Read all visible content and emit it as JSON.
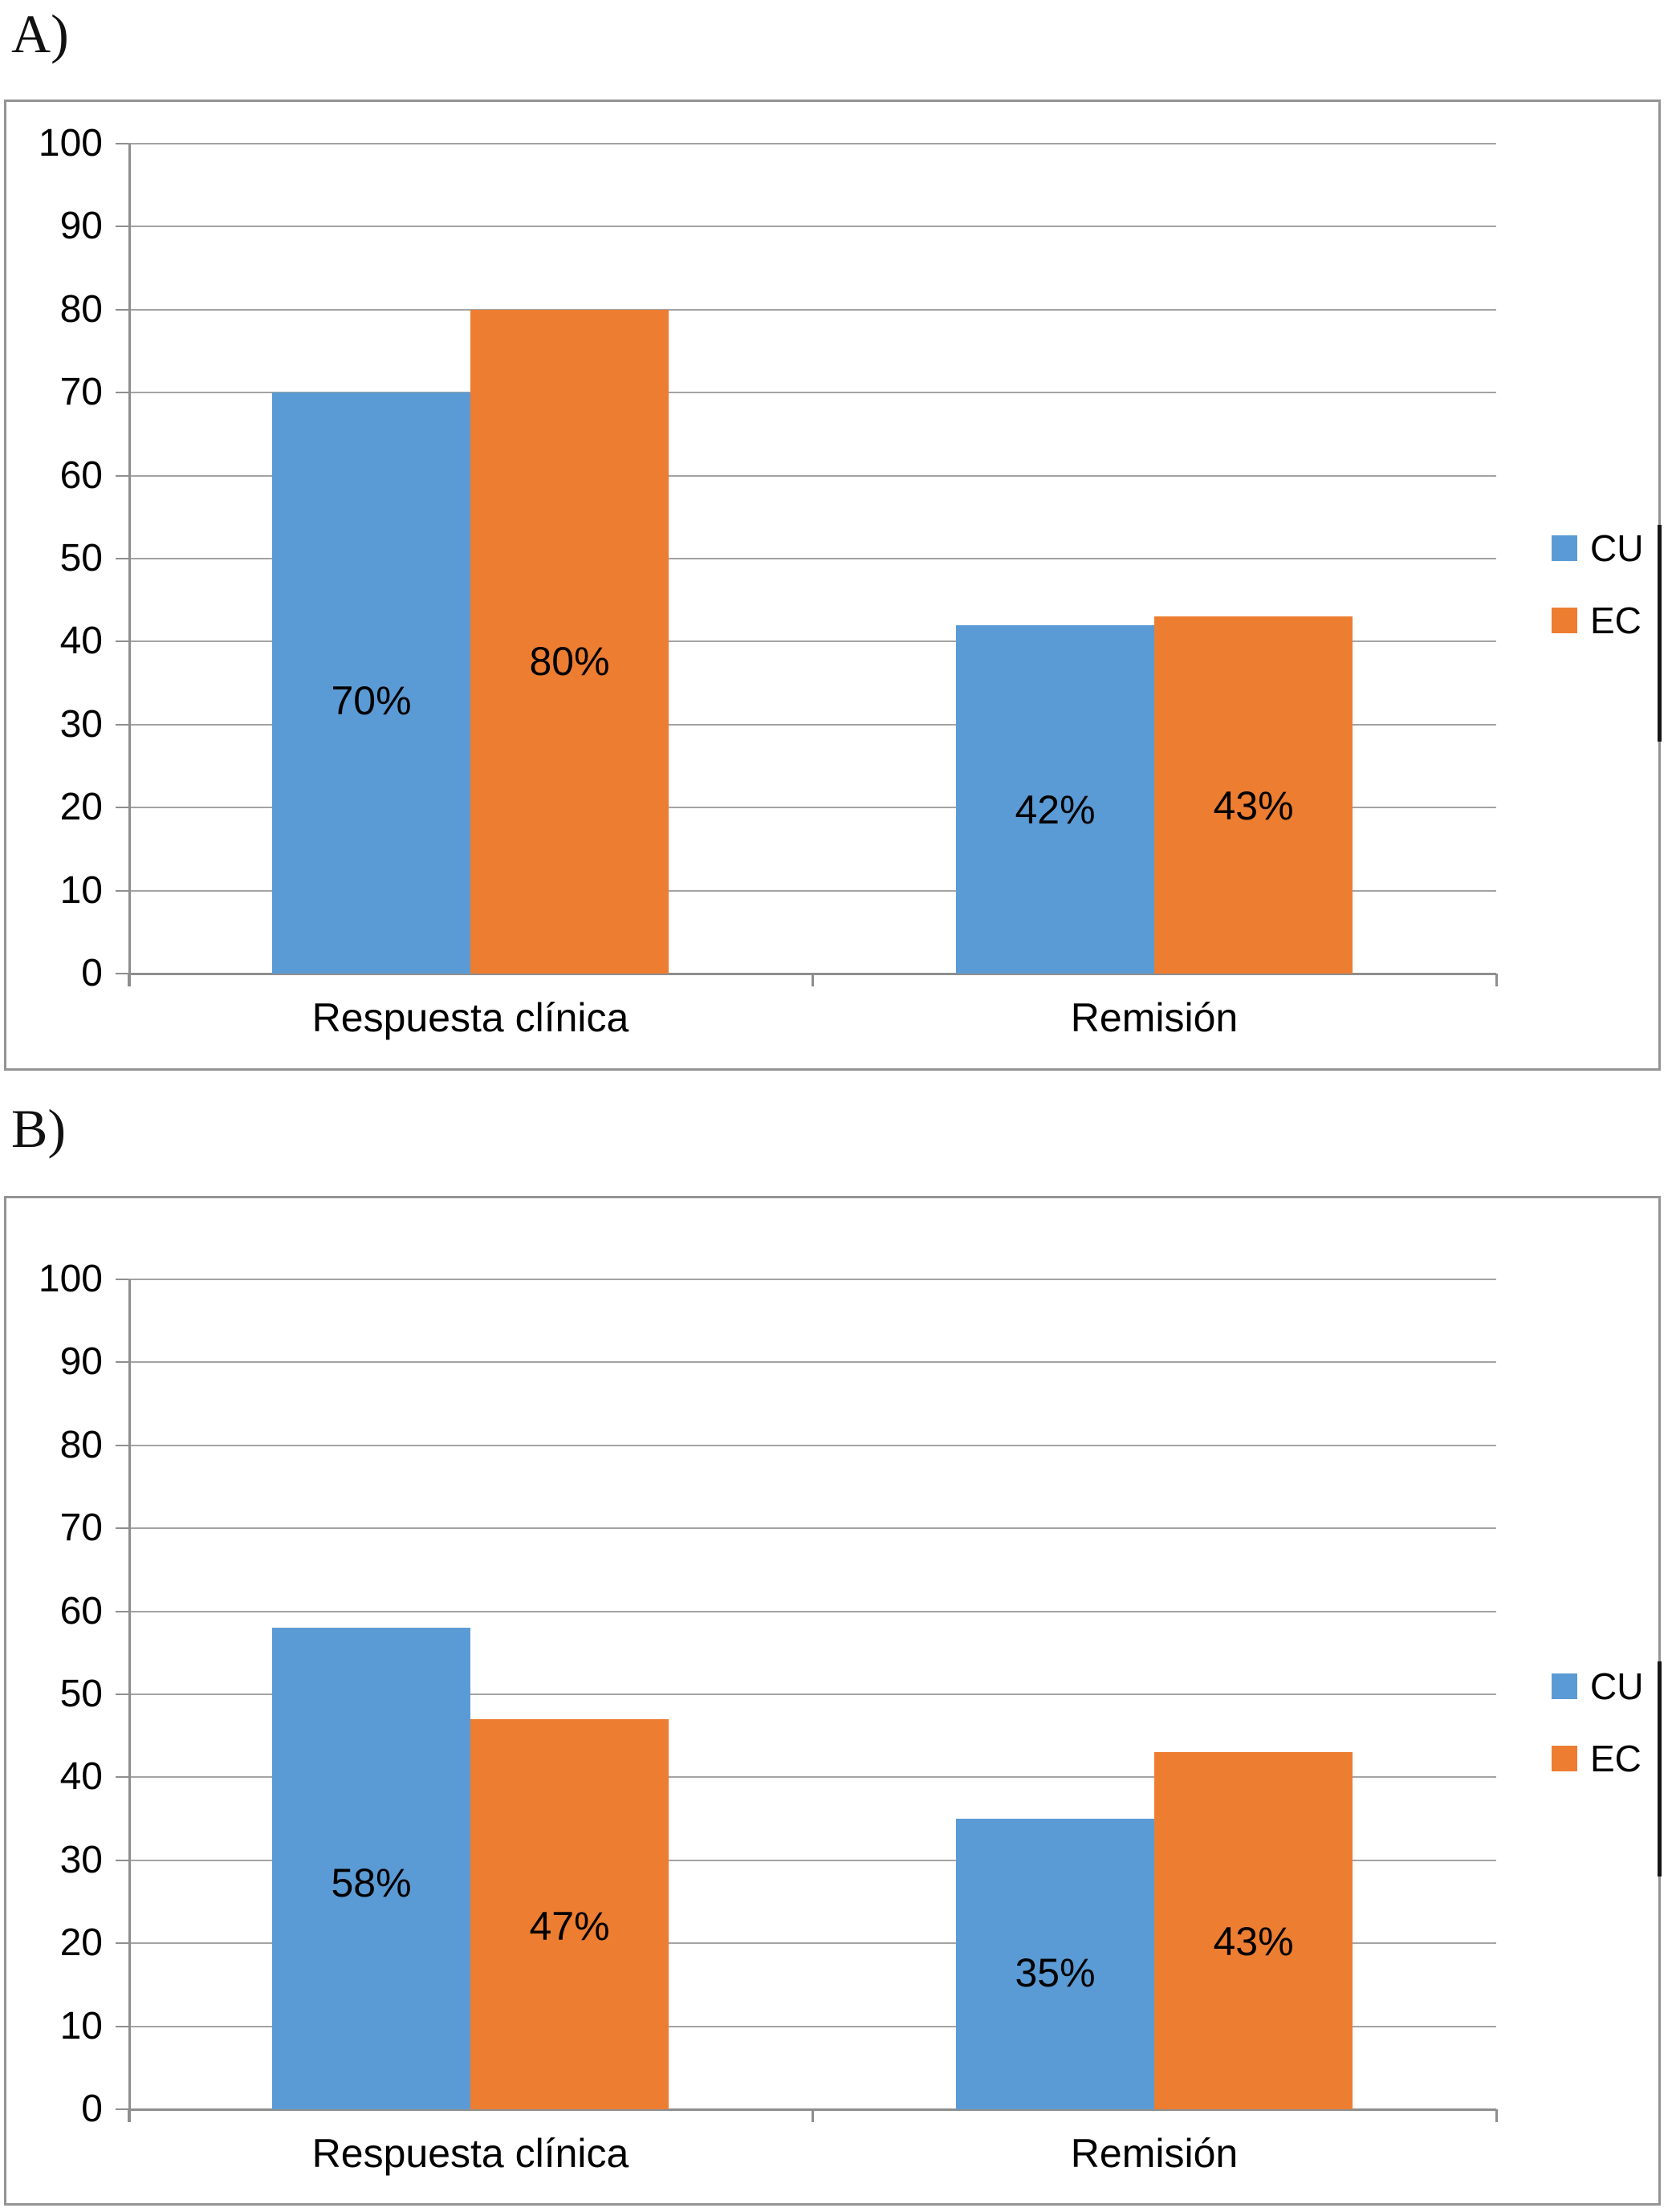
{
  "panels": [
    {
      "label": "A)"
    },
    {
      "label": "B)"
    }
  ],
  "style": {
    "series_colors": {
      "CU": "#5B9BD5",
      "EC": "#ED7D31"
    },
    "gridline_color": "#a3a3a3",
    "axis_color": "#8e8e8e",
    "box_border_color": "#949494",
    "label_color": "#000000"
  },
  "chart_data": [
    {
      "type": "bar",
      "panel": "A)",
      "title": "",
      "xlabel": "",
      "ylabel": "",
      "categories": [
        "Respuesta clínica",
        "Remisión"
      ],
      "series": [
        {
          "name": "CU",
          "color": "#5B9BD5",
          "values": [
            70,
            42
          ],
          "data_labels": [
            "70%",
            "42%"
          ]
        },
        {
          "name": "EC",
          "color": "#ED7D31",
          "values": [
            80,
            43
          ],
          "data_labels": [
            "80%",
            "43%"
          ]
        }
      ],
      "ylim": [
        0,
        100
      ],
      "yticks": [
        0,
        10,
        20,
        30,
        40,
        50,
        60,
        70,
        80,
        90,
        100
      ],
      "grid": true,
      "legend_position": "right",
      "legend_entries": [
        "CU",
        "EC"
      ]
    },
    {
      "type": "bar",
      "panel": "B)",
      "title": "",
      "xlabel": "",
      "ylabel": "",
      "categories": [
        "Respuesta clínica",
        "Remisión"
      ],
      "series": [
        {
          "name": "CU",
          "color": "#5B9BD5",
          "values": [
            58,
            35
          ],
          "data_labels": [
            "58%",
            "35%"
          ]
        },
        {
          "name": "EC",
          "color": "#ED7D31",
          "values": [
            47,
            43
          ],
          "data_labels": [
            "47%",
            "43%"
          ]
        }
      ],
      "ylim": [
        0,
        100
      ],
      "yticks": [
        0,
        10,
        20,
        30,
        40,
        50,
        60,
        70,
        80,
        90,
        100
      ],
      "grid": true,
      "legend_position": "right",
      "legend_entries": [
        "CU",
        "EC"
      ]
    }
  ]
}
